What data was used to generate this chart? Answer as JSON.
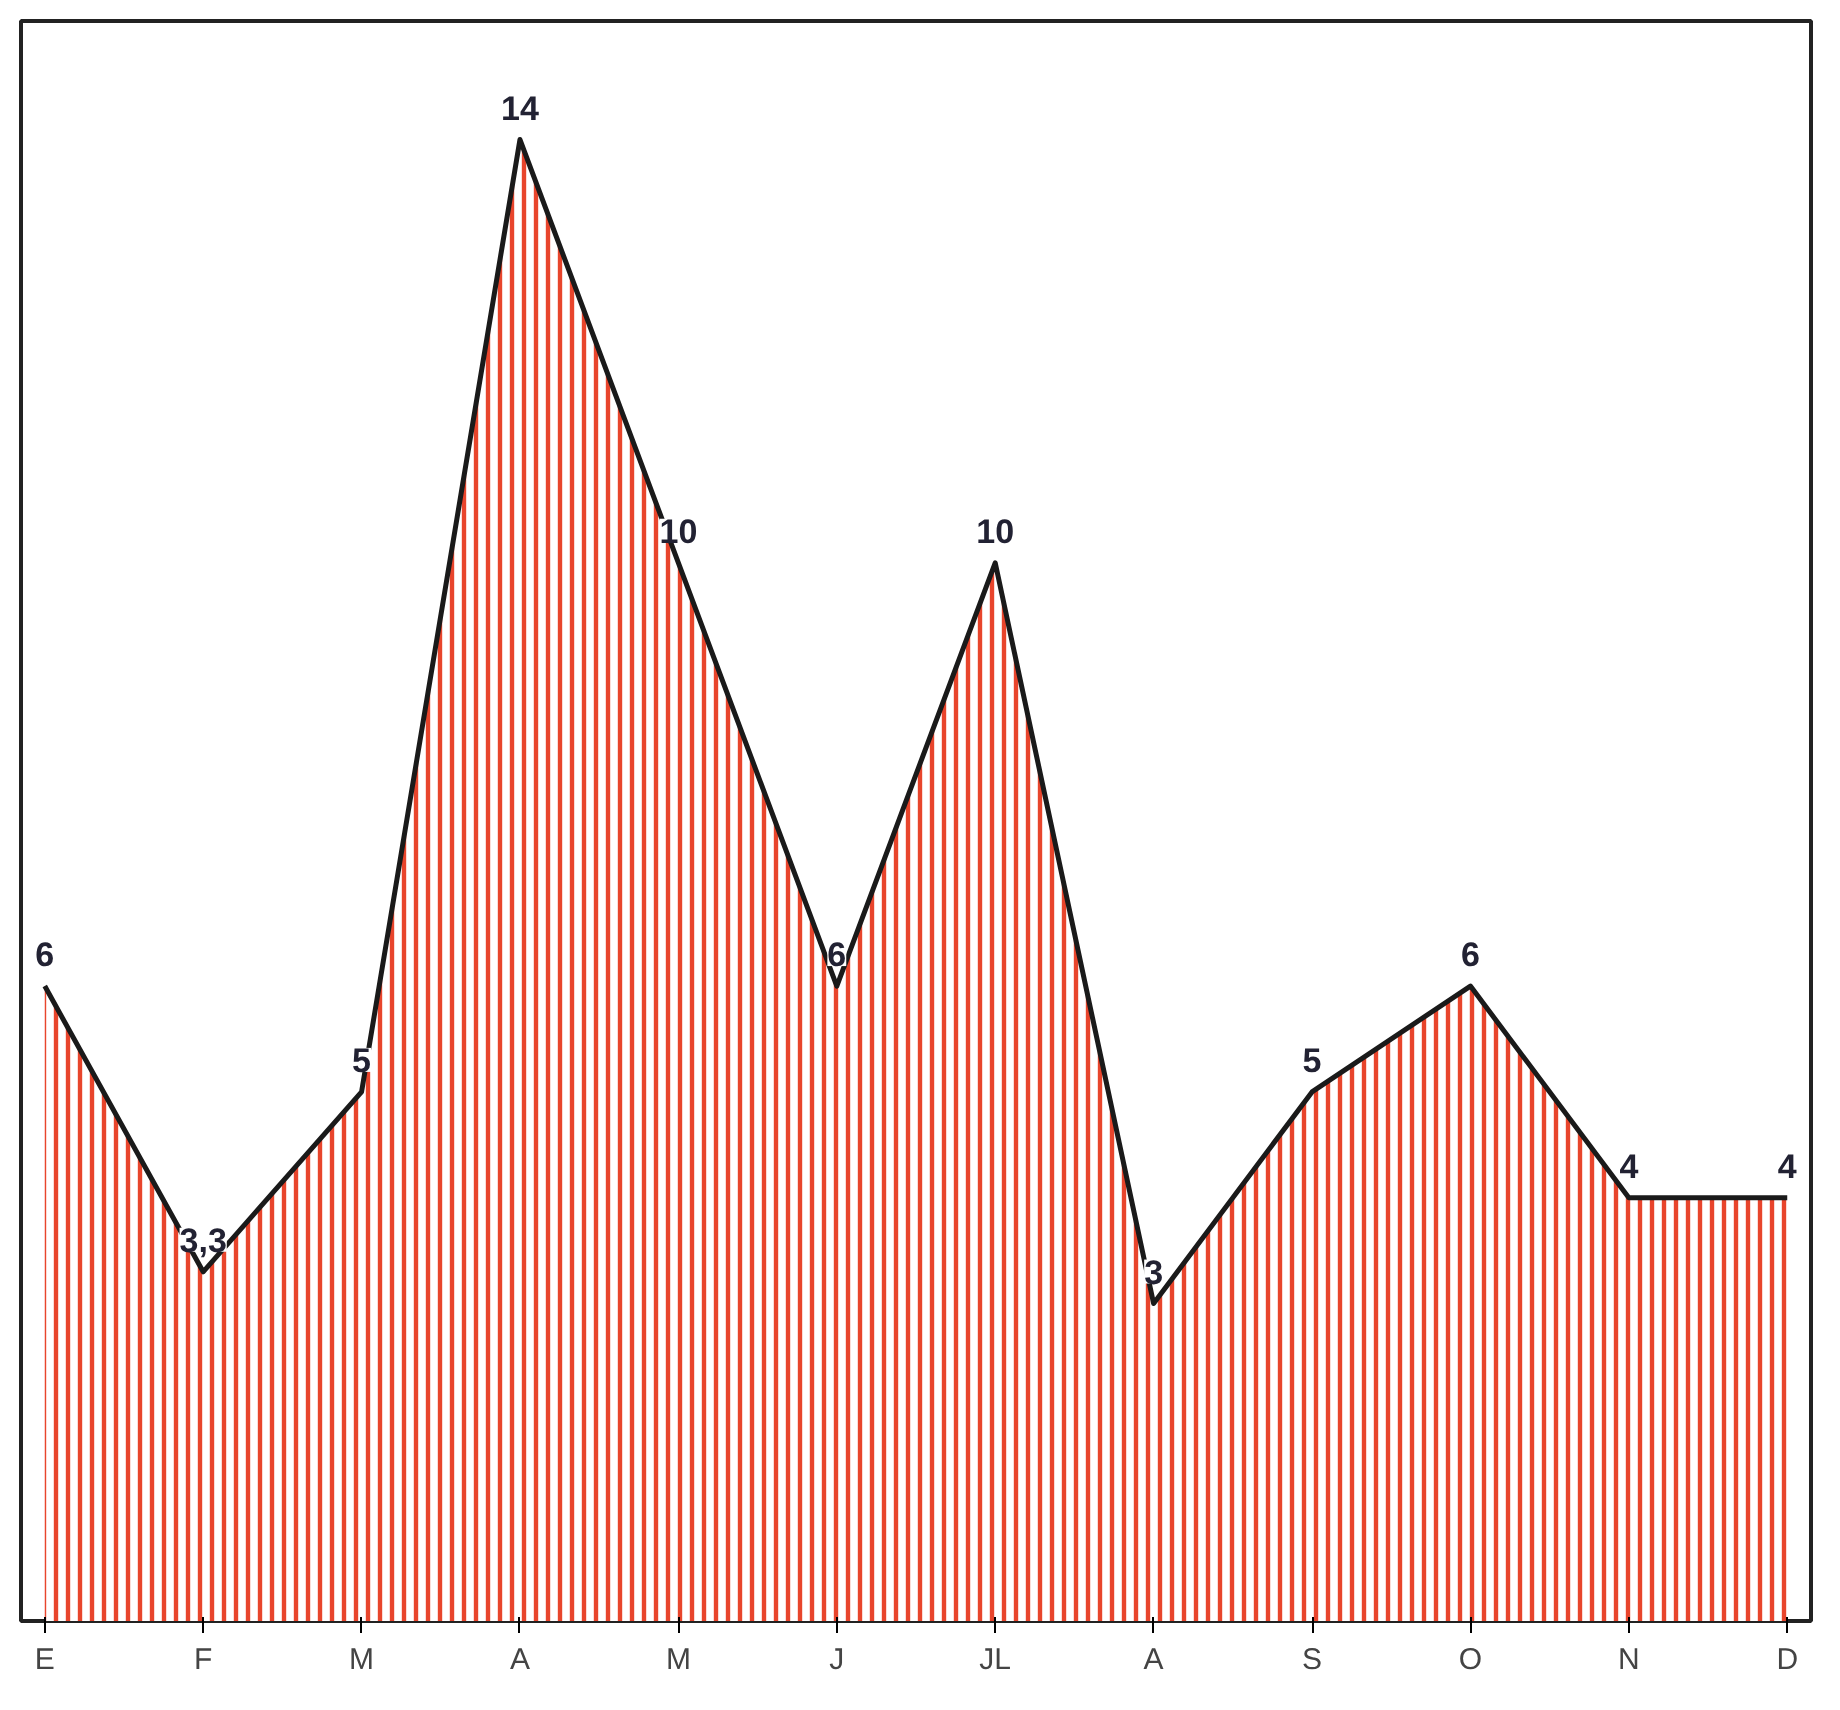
{
  "chart_data": {
    "type": "area",
    "categories": [
      "E",
      "F",
      "M",
      "A",
      "M",
      "J",
      "JL",
      "A",
      "S",
      "O",
      "N",
      "D"
    ],
    "series": [
      {
        "color": "#e8452c",
        "values": [
          6,
          3.3,
          5,
          14,
          10,
          6,
          10,
          3,
          5,
          6,
          4,
          4
        ],
        "value_labels": [
          "6",
          "3,3",
          "5",
          "14",
          "10",
          "6",
          "10",
          "3",
          "5",
          "6",
          "4",
          "4"
        ]
      }
    ],
    "grid": false,
    "tick_labels": "x"
  }
}
